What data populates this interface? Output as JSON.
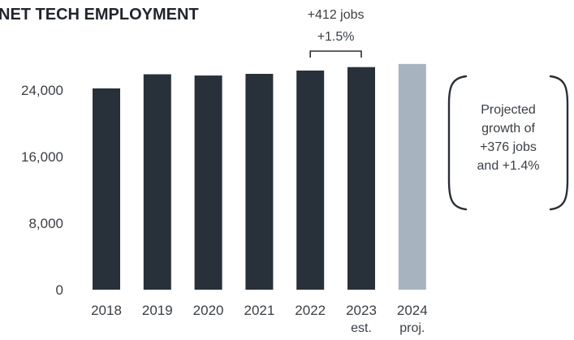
{
  "chart_data": {
    "type": "bar",
    "title": "NET TECH EMPLOYMENT",
    "categories": [
      "2018",
      "2019",
      "2020",
      "2021",
      "2022",
      "2023",
      "2024"
    ],
    "category_sublabels": [
      "",
      "",
      "",
      "",
      "",
      "est.",
      "proj."
    ],
    "values": [
      24200,
      25900,
      25750,
      25950,
      26350,
      26762,
      27138
    ],
    "bar_styles": [
      "actual",
      "actual",
      "actual",
      "actual",
      "actual",
      "actual",
      "projected"
    ],
    "ylim": [
      0,
      30000
    ],
    "yticks": [
      0,
      8000,
      16000,
      24000
    ],
    "ytick_labels": [
      "0",
      "8,000",
      "16,000",
      "24,000"
    ],
    "xlabel": "",
    "ylabel": "",
    "grid": false,
    "colors": {
      "actual": "#283139",
      "projected": "#a7b4bf",
      "text": "#3a3f45"
    },
    "annotations": {
      "change_2022_2023": {
        "line1": "+412 jobs",
        "line2": "+1.5%",
        "from": "2022",
        "to": "2023"
      },
      "projection_note": {
        "lines": [
          "Projected",
          "growth of",
          "+376 jobs",
          "and +1.4%"
        ]
      }
    }
  }
}
